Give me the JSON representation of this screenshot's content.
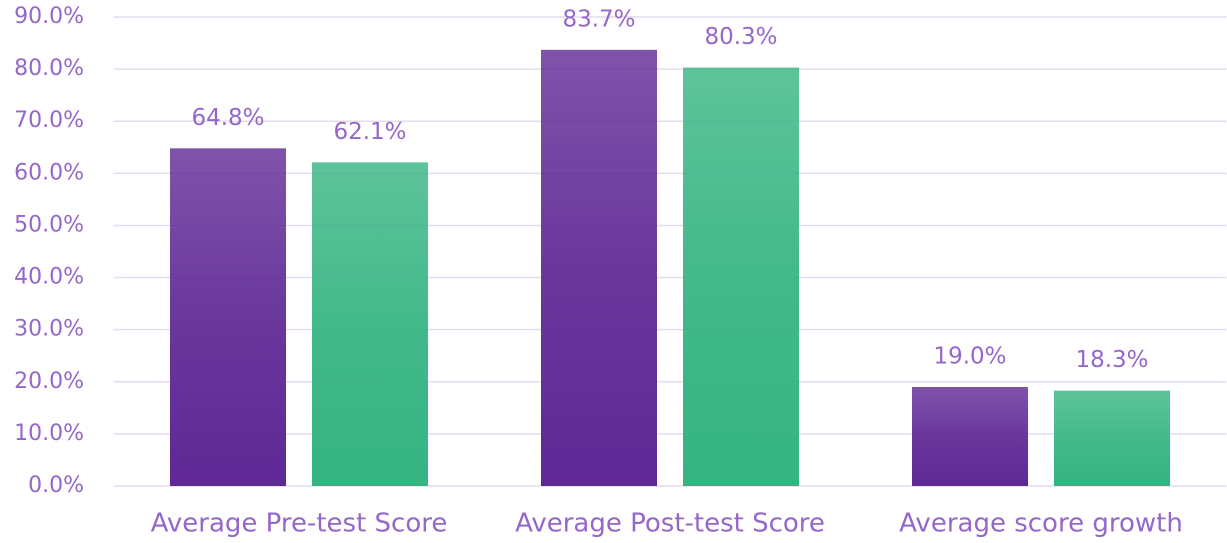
{
  "chart_data": {
    "type": "bar",
    "categories": [
      "Average Pre-test Score",
      "Average Post-test Score",
      "Average score growth"
    ],
    "series": [
      {
        "color": "#5f2895",
        "values": [
          64.8,
          83.7,
          19.0
        ],
        "value_labels": [
          "64.8%",
          "83.7%",
          "19.0%"
        ]
      },
      {
        "color": "#35b482",
        "values": [
          62.1,
          80.3,
          18.3
        ],
        "value_labels": [
          "62.1%",
          "80.3%",
          "18.3%"
        ]
      }
    ],
    "ylim": [
      0,
      90
    ],
    "yticks": [
      {
        "value": 0,
        "label": "0.0%"
      },
      {
        "value": 10,
        "label": "10.0%"
      },
      {
        "value": 20,
        "label": "20.0%"
      },
      {
        "value": 30,
        "label": "30.0%"
      },
      {
        "value": 40,
        "label": "40.0%"
      },
      {
        "value": 50,
        "label": "50.0%"
      },
      {
        "value": 60,
        "label": "60.0%"
      },
      {
        "value": 70,
        "label": "70.0%"
      },
      {
        "value": 80,
        "label": "80.0%"
      },
      {
        "value": 90,
        "label": "90.0%"
      }
    ],
    "grid": true
  }
}
